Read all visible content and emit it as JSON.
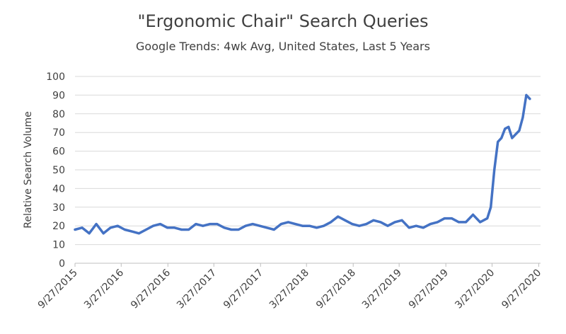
{
  "chart_data": {
    "type": "line",
    "title": "\"Ergonomic Chair\" Search Queries",
    "subtitle": "Google Trends: 4wk Avg, United States, Last 5 Years",
    "xlabel": "",
    "ylabel": "Relative Search Volume",
    "ylim": [
      0,
      100
    ],
    "yticks": [
      0,
      10,
      20,
      30,
      40,
      50,
      60,
      70,
      80,
      90,
      100
    ],
    "xlim": [
      "2015-09-27",
      "2020-10-04"
    ],
    "xticks": [
      "9/27/2015",
      "3/27/2016",
      "9/27/2016",
      "3/27/2017",
      "9/27/2017",
      "3/27/2018",
      "9/27/2018",
      "3/27/2019",
      "9/27/2019",
      "3/27/2020",
      "9/27/2020"
    ],
    "grid": true,
    "legend": "none",
    "line_color": "#4472C4",
    "series": [
      {
        "points": [
          [
            "2015-09-27",
            18
          ],
          [
            "2015-10-25",
            19
          ],
          [
            "2015-11-22",
            16
          ],
          [
            "2015-12-20",
            21
          ],
          [
            "2016-01-17",
            16
          ],
          [
            "2016-02-14",
            19
          ],
          [
            "2016-03-13",
            20
          ],
          [
            "2016-04-10",
            18
          ],
          [
            "2016-05-08",
            17
          ],
          [
            "2016-06-05",
            16
          ],
          [
            "2016-07-03",
            18
          ],
          [
            "2016-07-31",
            20
          ],
          [
            "2016-08-28",
            21
          ],
          [
            "2016-09-25",
            19
          ],
          [
            "2016-10-23",
            19
          ],
          [
            "2016-11-20",
            18
          ],
          [
            "2016-12-18",
            18
          ],
          [
            "2017-01-15",
            21
          ],
          [
            "2017-02-12",
            20
          ],
          [
            "2017-03-12",
            21
          ],
          [
            "2017-04-09",
            21
          ],
          [
            "2017-05-07",
            19
          ],
          [
            "2017-06-04",
            18
          ],
          [
            "2017-07-02",
            18
          ],
          [
            "2017-07-30",
            20
          ],
          [
            "2017-08-27",
            21
          ],
          [
            "2017-09-24",
            20
          ],
          [
            "2017-10-22",
            19
          ],
          [
            "2017-11-19",
            18
          ],
          [
            "2017-12-17",
            21
          ],
          [
            "2018-01-14",
            22
          ],
          [
            "2018-02-11",
            21
          ],
          [
            "2018-03-11",
            20
          ],
          [
            "2018-04-08",
            20
          ],
          [
            "2018-05-06",
            19
          ],
          [
            "2018-06-03",
            20
          ],
          [
            "2018-07-01",
            22
          ],
          [
            "2018-07-29",
            25
          ],
          [
            "2018-08-26",
            23
          ],
          [
            "2018-09-23",
            21
          ],
          [
            "2018-10-21",
            20
          ],
          [
            "2018-11-18",
            21
          ],
          [
            "2018-12-16",
            23
          ],
          [
            "2019-01-13",
            22
          ],
          [
            "2019-02-10",
            20
          ],
          [
            "2019-03-10",
            22
          ],
          [
            "2019-04-07",
            23
          ],
          [
            "2019-05-05",
            19
          ],
          [
            "2019-06-02",
            20
          ],
          [
            "2019-06-30",
            19
          ],
          [
            "2019-07-28",
            21
          ],
          [
            "2019-08-25",
            22
          ],
          [
            "2019-09-22",
            24
          ],
          [
            "2019-10-20",
            24
          ],
          [
            "2019-11-17",
            22
          ],
          [
            "2019-12-15",
            22
          ],
          [
            "2020-01-12",
            26
          ],
          [
            "2020-02-09",
            22
          ],
          [
            "2020-03-08",
            24
          ],
          [
            "2020-03-22",
            30
          ],
          [
            "2020-04-05",
            50
          ],
          [
            "2020-04-19",
            65
          ],
          [
            "2020-05-03",
            67
          ],
          [
            "2020-05-17",
            72
          ],
          [
            "2020-05-31",
            73
          ],
          [
            "2020-06-14",
            67
          ],
          [
            "2020-06-28",
            69
          ],
          [
            "2020-07-12",
            71
          ],
          [
            "2020-07-26",
            78
          ],
          [
            "2020-08-09",
            90
          ],
          [
            "2020-08-23",
            88
          ]
        ]
      }
    ]
  }
}
